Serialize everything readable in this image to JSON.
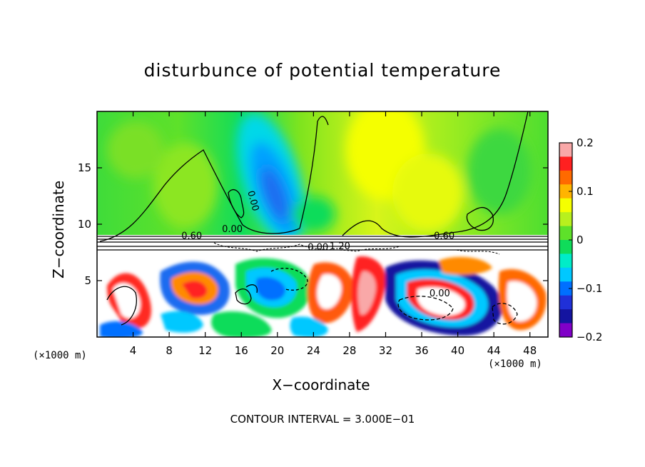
{
  "chart_data": {
    "type": "heatmap",
    "title": "disturbunce of potential temperature",
    "xlabel": "X−coordinate",
    "ylabel": "Z−coordinate",
    "x_unit": "(×1000 m)",
    "x_ticks": [
      4,
      8,
      12,
      16,
      20,
      24,
      28,
      32,
      36,
      40,
      44,
      48
    ],
    "y_ticks": [
      5,
      10,
      15
    ],
    "xlim": [
      0,
      50
    ],
    "ylim": [
      0,
      20
    ],
    "colorbar": {
      "range": [
        -0.2,
        0.2
      ],
      "tick_values": [
        0.2,
        0.1,
        0,
        -0.1,
        -0.2
      ],
      "tick_labels": [
        "0.2",
        "0.1",
        "0",
        "−0.1",
        "−0.2"
      ],
      "colors": [
        "#f9a8a8",
        "#ff2020",
        "#ff6a00",
        "#ffb400",
        "#f5ff00",
        "#b8f01e",
        "#5ee12a",
        "#10dc5a",
        "#00ecc8",
        "#00c8ff",
        "#0070ff",
        "#2030d8",
        "#1414a0",
        "#8000c8"
      ]
    },
    "contour_labels": [
      "0.60",
      "0.00",
      "0.60",
      "0.00",
      "−1.20",
      "0.00",
      "0.00"
    ],
    "contour_interval": "CONTOUR INTERVAL = 3.000E−01"
  }
}
